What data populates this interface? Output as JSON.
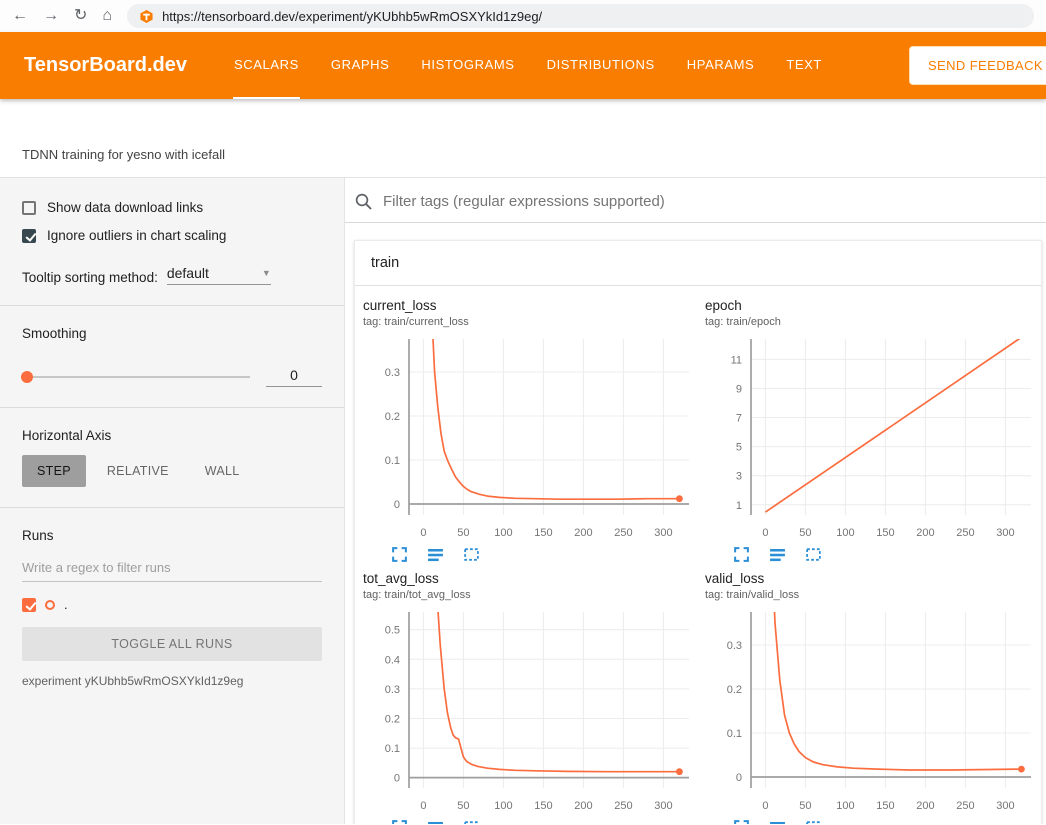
{
  "colors": {
    "header_orange": "#f97d01",
    "run_color": "#fb6d3f",
    "icon_blue": "#2b8fd6"
  },
  "browser": {
    "url": "https://tensorboard.dev/experiment/yKUbhb5wRmOSXYkId1z9eg/",
    "icons": [
      "back-arrow",
      "forward-arrow",
      "refresh",
      "home",
      "tensorboard-favicon"
    ]
  },
  "header": {
    "logo": "TensorBoard.dev",
    "tabs": [
      {
        "label": "SCALARS",
        "active": true
      },
      {
        "label": "GRAPHS",
        "active": false
      },
      {
        "label": "HISTOGRAMS",
        "active": false
      },
      {
        "label": "DISTRIBUTIONS",
        "active": false
      },
      {
        "label": "HPARAMS",
        "active": false
      },
      {
        "label": "TEXT",
        "active": false
      }
    ],
    "feedback_label": "SEND FEEDBACK"
  },
  "experiment_title": "TDNN training for yesno with icefall",
  "sidebar": {
    "show_download": {
      "label": "Show data download links",
      "checked": false
    },
    "ignore_outliers": {
      "label": "Ignore outliers in chart scaling",
      "checked": true
    },
    "tooltip_sorting": {
      "label": "Tooltip sorting method:",
      "value": "default"
    },
    "smoothing": {
      "label": "Smoothing",
      "value": "0"
    },
    "horizontal_axis": {
      "label": "Horizontal Axis",
      "options": [
        {
          "label": "STEP",
          "active": true
        },
        {
          "label": "RELATIVE",
          "active": false
        },
        {
          "label": "WALL",
          "active": false
        }
      ]
    },
    "runs": {
      "label": "Runs",
      "filter_placeholder": "Write a regex to filter runs",
      "items": [
        {
          "name": ".",
          "checked": true,
          "color": "#fb6d3f"
        }
      ],
      "toggle_all_label": "TOGGLE ALL RUNS",
      "experiment_caption": "experiment yKUbhb5wRmOSXYkId1z9eg"
    }
  },
  "main": {
    "filter_placeholder": "Filter tags (regular expressions supported)",
    "group": "train",
    "chart_action_icons": [
      "fullscreen",
      "data-table",
      "fit-domain"
    ]
  },
  "chart_data": [
    {
      "type": "line",
      "title": "current_loss",
      "tag": "tag: train/current_loss",
      "color": "#fb6d3f",
      "xlim": [
        -18,
        332
      ],
      "ylim": [
        -0.025,
        0.375
      ],
      "xticks": [
        0,
        50,
        100,
        150,
        200,
        250,
        300
      ],
      "yticks": [
        0,
        0.1,
        0.2,
        0.3
      ],
      "end_dot": true,
      "series": [
        {
          "name": ".",
          "points": [
            [
              0,
              1.5
            ],
            [
              5,
              0.8
            ],
            [
              10,
              0.45
            ],
            [
              14,
              0.3
            ],
            [
              18,
              0.22
            ],
            [
              22,
              0.16
            ],
            [
              26,
              0.12
            ],
            [
              30,
              0.1
            ],
            [
              35,
              0.08
            ],
            [
              40,
              0.062
            ],
            [
              45,
              0.05
            ],
            [
              50,
              0.04
            ],
            [
              55,
              0.033
            ],
            [
              60,
              0.028
            ],
            [
              70,
              0.022
            ],
            [
              80,
              0.018
            ],
            [
              95,
              0.015
            ],
            [
              115,
              0.013
            ],
            [
              140,
              0.012
            ],
            [
              170,
              0.011
            ],
            [
              200,
              0.011
            ],
            [
              240,
              0.011
            ],
            [
              280,
              0.012
            ],
            [
              320,
              0.012
            ]
          ]
        }
      ]
    },
    {
      "type": "line",
      "title": "epoch",
      "tag": "tag: train/epoch",
      "color": "#fb6d3f",
      "xlim": [
        -18,
        332
      ],
      "ylim": [
        0.3,
        12.4
      ],
      "xticks": [
        0,
        50,
        100,
        150,
        200,
        250,
        300
      ],
      "yticks": [
        1,
        3,
        5,
        7,
        9,
        11
      ],
      "end_dot": false,
      "series": [
        {
          "name": ".",
          "points": [
            [
              0,
              0.5
            ],
            [
              325,
              12.7
            ]
          ]
        }
      ]
    },
    {
      "type": "line",
      "title": "tot_avg_loss",
      "tag": "tag: train/tot_avg_loss",
      "color": "#fb6d3f",
      "xlim": [
        -18,
        332
      ],
      "ylim": [
        -0.035,
        0.56
      ],
      "xticks": [
        0,
        50,
        100,
        150,
        200,
        250,
        300
      ],
      "yticks": [
        0,
        0.1,
        0.2,
        0.3,
        0.4,
        0.5
      ],
      "end_dot": true,
      "series": [
        {
          "name": ".",
          "points": [
            [
              0,
              2.0
            ],
            [
              8,
              1.2
            ],
            [
              15,
              0.7
            ],
            [
              21,
              0.45
            ],
            [
              26,
              0.3
            ],
            [
              30,
              0.22
            ],
            [
              34,
              0.17
            ],
            [
              37,
              0.145
            ],
            [
              40,
              0.135
            ],
            [
              44,
              0.13
            ],
            [
              47,
              0.1
            ],
            [
              50,
              0.07
            ],
            [
              54,
              0.055
            ],
            [
              60,
              0.045
            ],
            [
              68,
              0.038
            ],
            [
              80,
              0.032
            ],
            [
              95,
              0.028
            ],
            [
              115,
              0.025
            ],
            [
              140,
              0.023
            ],
            [
              180,
              0.021
            ],
            [
              230,
              0.02
            ],
            [
              280,
              0.02
            ],
            [
              320,
              0.02
            ]
          ]
        }
      ]
    },
    {
      "type": "line",
      "title": "valid_loss",
      "tag": "tag: train/valid_loss",
      "color": "#fb6d3f",
      "xlim": [
        -18,
        332
      ],
      "ylim": [
        -0.025,
        0.375
      ],
      "xticks": [
        0,
        50,
        100,
        150,
        200,
        250,
        300
      ],
      "yticks": [
        0,
        0.1,
        0.2,
        0.3
      ],
      "end_dot": true,
      "series": [
        {
          "name": ".",
          "points": [
            [
              0,
              1.2
            ],
            [
              6,
              0.6
            ],
            [
              12,
              0.35
            ],
            [
              18,
              0.22
            ],
            [
              24,
              0.14
            ],
            [
              30,
              0.1
            ],
            [
              36,
              0.075
            ],
            [
              42,
              0.058
            ],
            [
              50,
              0.044
            ],
            [
              60,
              0.034
            ],
            [
              72,
              0.028
            ],
            [
              90,
              0.023
            ],
            [
              110,
              0.02
            ],
            [
              140,
              0.018
            ],
            [
              180,
              0.016
            ],
            [
              230,
              0.016
            ],
            [
              280,
              0.017
            ],
            [
              320,
              0.018
            ]
          ]
        }
      ]
    }
  ]
}
